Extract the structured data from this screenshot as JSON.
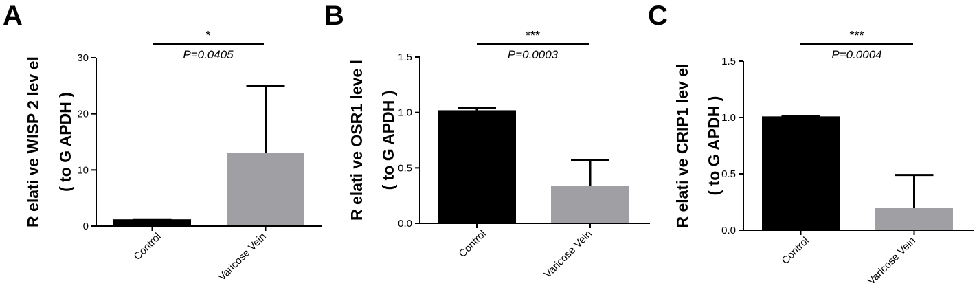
{
  "chart_data": [
    {
      "type": "bar",
      "panel": "A",
      "categories": [
        "Control",
        "Varicose Vein"
      ],
      "values": [
        1.2,
        13.1
      ],
      "error_upper": [
        1.2,
        25.0
      ],
      "colors": [
        "#000000",
        "#a0a0a4"
      ],
      "ylabel_line1": "R elati ve WISP 2  lev el",
      "ylabel_line2": "( to G APDH )",
      "ylim": [
        0,
        30
      ],
      "yticks": [
        "0",
        "10",
        "20",
        "30"
      ],
      "ytick_values": [
        0,
        10,
        20,
        30
      ],
      "significance": "*",
      "pvalue": "P=0.0405"
    },
    {
      "type": "bar",
      "panel": "B",
      "categories": [
        "Control",
        "Varicose Vein"
      ],
      "values": [
        1.02,
        0.34
      ],
      "error_upper": [
        1.04,
        0.57
      ],
      "colors": [
        "#000000",
        "#a0a0a4"
      ],
      "ylabel_line1": "R elati ve OSR1   leve l",
      "ylabel_line2": "( to G APDH )",
      "ylim": [
        0,
        1.5
      ],
      "yticks": [
        "0.0",
        "0.5",
        "1.0",
        "1.5"
      ],
      "ytick_values": [
        0,
        0.5,
        1.0,
        1.5
      ],
      "significance": "***",
      "pvalue": "P=0.0003"
    },
    {
      "type": "bar",
      "panel": "C",
      "categories": [
        "Control",
        "Varicose Vein"
      ],
      "values": [
        1.01,
        0.2
      ],
      "error_upper": [
        1.01,
        0.49
      ],
      "colors": [
        "#000000",
        "#a0a0a4"
      ],
      "ylabel_line1": "R elati ve CRIP1   lev el",
      "ylabel_line2": "( to G APDH )",
      "ylim": [
        0,
        1.5
      ],
      "yticks": [
        "0.0",
        "0.5",
        "1.0",
        "1.5"
      ],
      "ytick_values": [
        0,
        0.5,
        1.0,
        1.5
      ],
      "significance": "***",
      "pvalue": "P=0.0004"
    }
  ]
}
